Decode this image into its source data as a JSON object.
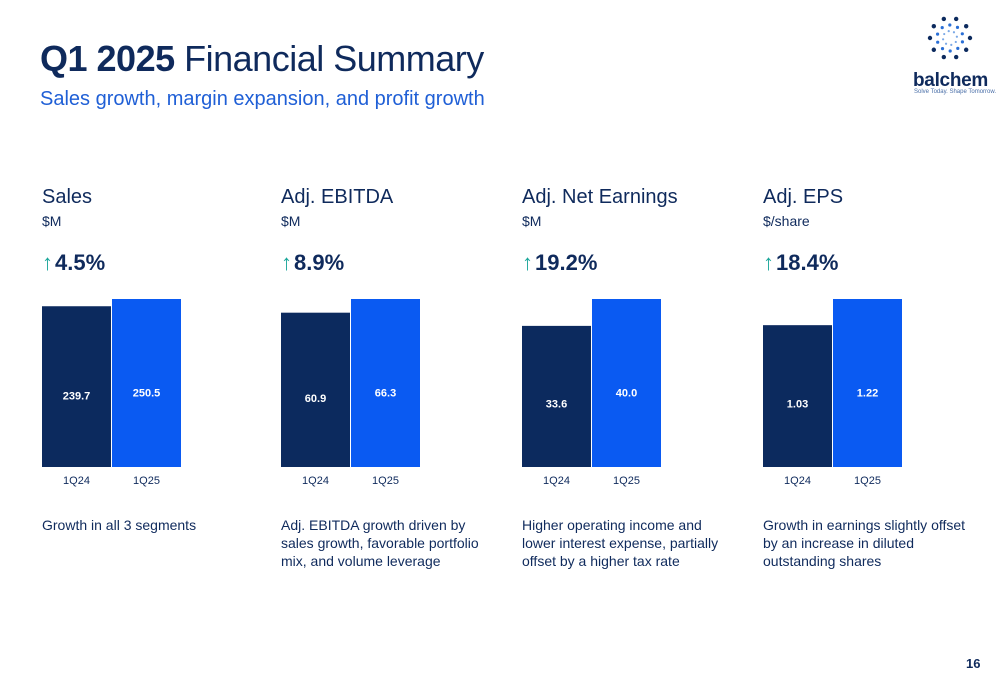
{
  "header": {
    "title_bold": "Q1 2025",
    "title_rest": "Financial Summary",
    "subtitle": "Sales growth, margin expansion, and profit growth"
  },
  "logo": {
    "name": "balchem",
    "tagline": "Solve Today. Shape Tomorrow.",
    "icon": "dot-burst-icon"
  },
  "colors": {
    "dark_bar": "#0c2a5e",
    "light_bar": "#0a5af2",
    "growth_arrow": "#1aa69a",
    "text": "#0f2a5c",
    "subtitle": "#1f5fd6"
  },
  "chart_data": [
    {
      "type": "bar",
      "title": "Sales",
      "unit": "$M",
      "growth": "4.5%",
      "categories": [
        "1Q24",
        "1Q25"
      ],
      "values": [
        239.7,
        250.5
      ],
      "value_labels": [
        "239.7",
        "250.5"
      ],
      "description": "Growth in all 3 segments"
    },
    {
      "type": "bar",
      "title": "Adj. EBITDA",
      "unit": "$M",
      "growth": "8.9%",
      "categories": [
        "1Q24",
        "1Q25"
      ],
      "values": [
        60.9,
        66.3
      ],
      "value_labels": [
        "60.9",
        "66.3"
      ],
      "description": "Adj. EBITDA growth driven by sales growth, favorable portfolio mix, and volume leverage"
    },
    {
      "type": "bar",
      "title": "Adj. Net Earnings",
      "unit": "$M",
      "growth": "19.2%",
      "categories": [
        "1Q24",
        "1Q25"
      ],
      "values": [
        33.6,
        40.0
      ],
      "value_labels": [
        "33.6",
        "40.0"
      ],
      "description": "Higher operating income and lower interest expense, partially offset by a higher tax rate"
    },
    {
      "type": "bar",
      "title": "Adj. EPS",
      "unit": "$/share",
      "growth": "18.4%",
      "categories": [
        "1Q24",
        "1Q25"
      ],
      "values": [
        1.03,
        1.22
      ],
      "value_labels": [
        "1.03",
        "1.22"
      ],
      "description": "Growth in earnings slightly offset by an increase in diluted outstanding shares"
    }
  ],
  "page_number": "16"
}
